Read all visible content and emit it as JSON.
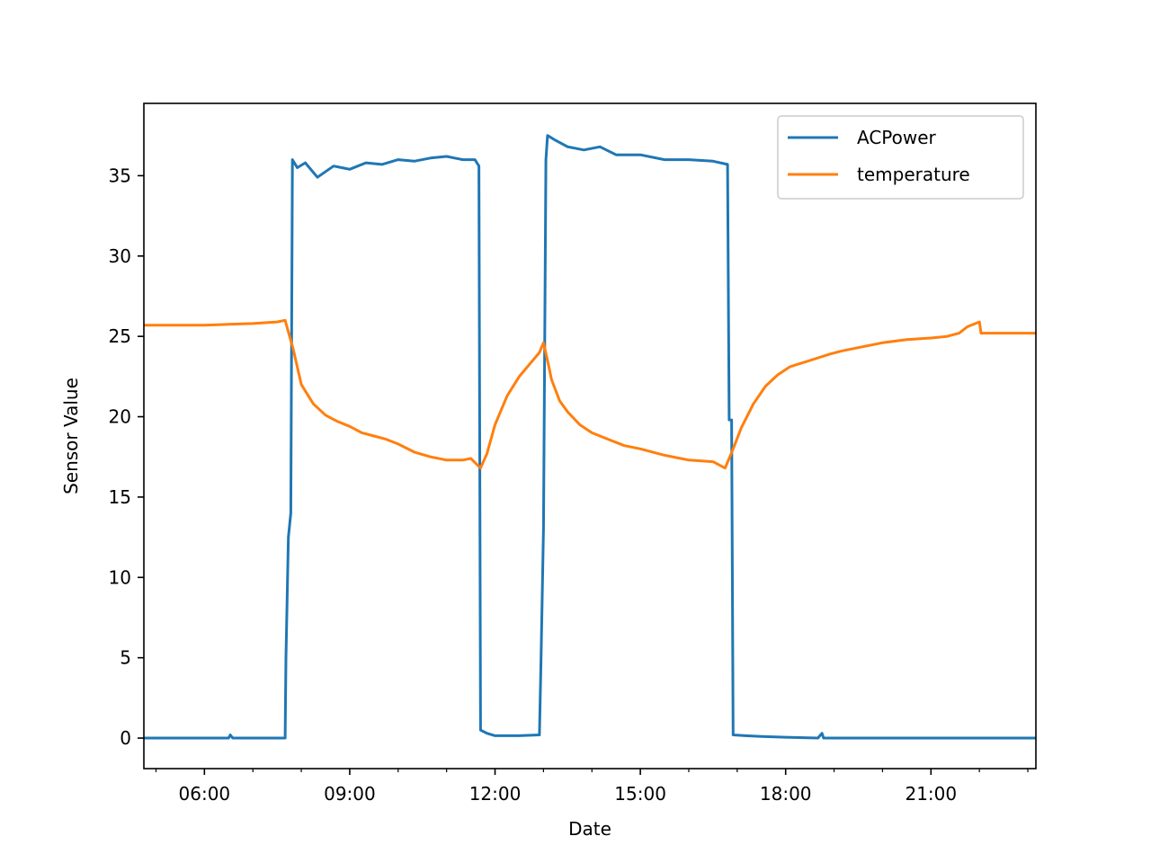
{
  "chart_data": {
    "type": "line",
    "xlabel": "Date",
    "ylabel": "Sensor Value",
    "x_unit": "time of day (HH:MM)",
    "xlim": [
      "04:45",
      "23:10"
    ],
    "ylim": [
      -1.9,
      39.5
    ],
    "x_ticks": [
      "06:00",
      "09:00",
      "12:00",
      "15:00",
      "18:00",
      "21:00"
    ],
    "y_ticks": [
      0,
      5,
      10,
      15,
      20,
      25,
      30,
      35
    ],
    "y_tick_labels": [
      "0",
      "5",
      "10",
      "15",
      "20",
      "25",
      "30",
      "35"
    ],
    "grid": false,
    "legend_position": "top-right",
    "series": [
      {
        "name": "ACPower",
        "color": "#1f77b4",
        "points": [
          [
            "04:45",
            0.0
          ],
          [
            "06:30",
            0.0
          ],
          [
            "06:32",
            0.2
          ],
          [
            "06:35",
            0.0
          ],
          [
            "07:40",
            0.0
          ],
          [
            "07:41",
            5.0
          ],
          [
            "07:44",
            12.5
          ],
          [
            "07:47",
            14.0
          ],
          [
            "07:49",
            36.0
          ],
          [
            "07:55",
            35.5
          ],
          [
            "08:05",
            35.8
          ],
          [
            "08:20",
            34.9
          ],
          [
            "08:40",
            35.6
          ],
          [
            "09:00",
            35.4
          ],
          [
            "09:20",
            35.8
          ],
          [
            "09:40",
            35.7
          ],
          [
            "10:00",
            36.0
          ],
          [
            "10:20",
            35.9
          ],
          [
            "10:40",
            36.1
          ],
          [
            "11:00",
            36.2
          ],
          [
            "11:20",
            36.0
          ],
          [
            "11:35",
            36.0
          ],
          [
            "11:40",
            35.6
          ],
          [
            "11:42",
            0.5
          ],
          [
            "11:50",
            0.3
          ],
          [
            "12:00",
            0.15
          ],
          [
            "12:30",
            0.15
          ],
          [
            "12:55",
            0.2
          ],
          [
            "12:57",
            5.0
          ],
          [
            "13:00",
            13.0
          ],
          [
            "13:03",
            36.0
          ],
          [
            "13:05",
            37.5
          ],
          [
            "13:15",
            37.2
          ],
          [
            "13:30",
            36.8
          ],
          [
            "13:50",
            36.6
          ],
          [
            "14:10",
            36.8
          ],
          [
            "14:30",
            36.3
          ],
          [
            "15:00",
            36.3
          ],
          [
            "15:30",
            36.0
          ],
          [
            "16:00",
            36.0
          ],
          [
            "16:30",
            35.9
          ],
          [
            "16:48",
            35.7
          ],
          [
            "16:50",
            19.8
          ],
          [
            "16:53",
            19.8
          ],
          [
            "16:55",
            0.2
          ],
          [
            "17:10",
            0.15
          ],
          [
            "17:30",
            0.1
          ],
          [
            "18:00",
            0.05
          ],
          [
            "18:40",
            0.0
          ],
          [
            "18:45",
            0.3
          ],
          [
            "18:47",
            0.0
          ],
          [
            "19:00",
            0.0
          ],
          [
            "21:00",
            0.0
          ],
          [
            "23:10",
            0.0
          ]
        ]
      },
      {
        "name": "temperature",
        "color": "#ff7f0e",
        "points": [
          [
            "04:45",
            25.7
          ],
          [
            "06:00",
            25.7
          ],
          [
            "07:00",
            25.8
          ],
          [
            "07:30",
            25.9
          ],
          [
            "07:40",
            26.0
          ],
          [
            "07:50",
            24.2
          ],
          [
            "08:00",
            22.0
          ],
          [
            "08:15",
            20.8
          ],
          [
            "08:30",
            20.1
          ],
          [
            "08:45",
            19.7
          ],
          [
            "09:00",
            19.4
          ],
          [
            "09:15",
            19.0
          ],
          [
            "09:30",
            18.8
          ],
          [
            "09:45",
            18.6
          ],
          [
            "10:00",
            18.3
          ],
          [
            "10:20",
            17.8
          ],
          [
            "10:40",
            17.5
          ],
          [
            "11:00",
            17.3
          ],
          [
            "11:20",
            17.3
          ],
          [
            "11:30",
            17.4
          ],
          [
            "11:42",
            16.8
          ],
          [
            "11:50",
            17.7
          ],
          [
            "12:00",
            19.5
          ],
          [
            "12:15",
            21.3
          ],
          [
            "12:30",
            22.5
          ],
          [
            "12:45",
            23.4
          ],
          [
            "12:55",
            24.0
          ],
          [
            "13:00",
            24.6
          ],
          [
            "13:05",
            23.5
          ],
          [
            "13:10",
            22.3
          ],
          [
            "13:20",
            21.0
          ],
          [
            "13:30",
            20.3
          ],
          [
            "13:45",
            19.5
          ],
          [
            "14:00",
            19.0
          ],
          [
            "14:20",
            18.6
          ],
          [
            "14:40",
            18.2
          ],
          [
            "15:00",
            18.0
          ],
          [
            "15:30",
            17.6
          ],
          [
            "16:00",
            17.3
          ],
          [
            "16:30",
            17.2
          ],
          [
            "16:45",
            16.8
          ],
          [
            "16:55",
            18.0
          ],
          [
            "17:05",
            19.3
          ],
          [
            "17:20",
            20.8
          ],
          [
            "17:35",
            21.9
          ],
          [
            "17:50",
            22.6
          ],
          [
            "18:05",
            23.1
          ],
          [
            "18:30",
            23.5
          ],
          [
            "18:55",
            23.9
          ],
          [
            "19:10",
            24.1
          ],
          [
            "19:30",
            24.3
          ],
          [
            "20:00",
            24.6
          ],
          [
            "20:30",
            24.8
          ],
          [
            "21:00",
            24.9
          ],
          [
            "21:20",
            25.0
          ],
          [
            "21:35",
            25.2
          ],
          [
            "21:45",
            25.6
          ],
          [
            "21:55",
            25.8
          ],
          [
            "22:00",
            25.9
          ],
          [
            "22:02",
            25.2
          ],
          [
            "22:30",
            25.2
          ],
          [
            "23:00",
            25.2
          ],
          [
            "23:10",
            25.2
          ]
        ]
      }
    ]
  }
}
